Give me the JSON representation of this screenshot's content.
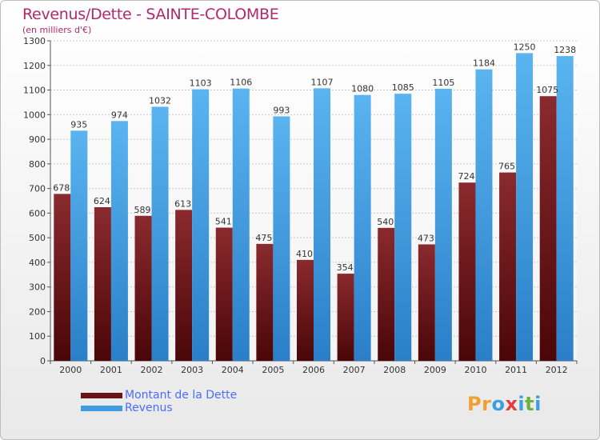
{
  "header": {
    "title": "Revenus/Dette - SAINTE-COLOMBE",
    "subtitle": "(en milliers d'€)"
  },
  "chart_data": {
    "type": "bar",
    "categories": [
      "2000",
      "2001",
      "2002",
      "2003",
      "2004",
      "2005",
      "2006",
      "2007",
      "2008",
      "2009",
      "2010",
      "2011",
      "2012"
    ],
    "series": [
      {
        "name": "Montant de la Dette",
        "values": [
          678,
          624,
          589,
          613,
          541,
          475,
          410,
          354,
          540,
          473,
          724,
          765,
          1075
        ],
        "color": "#6b1216"
      },
      {
        "name": "Revenus",
        "values": [
          935,
          974,
          1032,
          1103,
          1106,
          993,
          1107,
          1080,
          1085,
          1105,
          1184,
          1250,
          1238
        ],
        "color": "#3f9be2"
      }
    ],
    "ylim": [
      0,
      1300
    ],
    "yticks": [
      0,
      100,
      200,
      300,
      400,
      500,
      600,
      700,
      800,
      900,
      1000,
      1100,
      1200,
      1300
    ],
    "grid": true,
    "legend_position": "bottom-left"
  },
  "logo": {
    "text": "Proxiti",
    "letters": [
      {
        "ch": "P",
        "color": "#f0a030"
      },
      {
        "ch": "r",
        "color": "#f0a030"
      },
      {
        "ch": "o",
        "color": "#3aa0e0"
      },
      {
        "ch": "x",
        "color": "#e04040"
      },
      {
        "ch": "i",
        "color": "#3aa0e0"
      },
      {
        "ch": "t",
        "color": "#70b040"
      },
      {
        "ch": "i",
        "color": "#3aa0e0"
      }
    ]
  }
}
